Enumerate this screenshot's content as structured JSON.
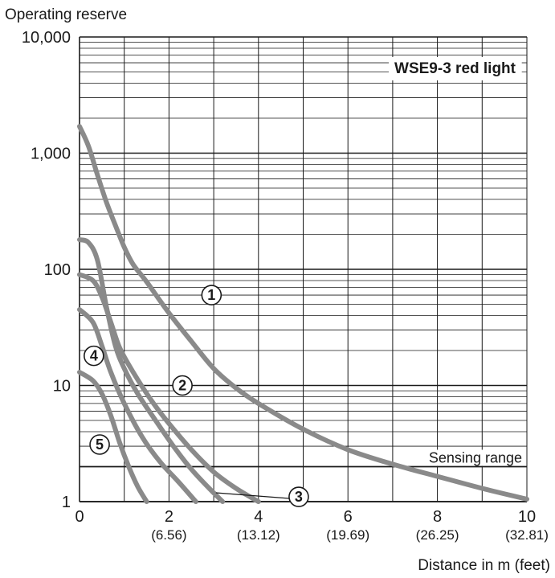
{
  "colors": {
    "curve": "#8a8a8a",
    "grid": "#1a1a1a",
    "background": "#ffffff",
    "text": "#1a1a1a"
  },
  "chart_data": {
    "type": "line",
    "title": "WSE9-3 red light",
    "ylabel": "Operating reserve",
    "xlabel": "Distance in m (feet)",
    "x_ticks": [
      {
        "value": 0,
        "label": "0",
        "sub": ""
      },
      {
        "value": 2,
        "label": "2",
        "sub": "(6.56)"
      },
      {
        "value": 4,
        "label": "4",
        "sub": "(13.12)"
      },
      {
        "value": 6,
        "label": "6",
        "sub": "(19.69)"
      },
      {
        "value": 8,
        "label": "8",
        "sub": "(26.25)"
      },
      {
        "value": 10,
        "label": "10",
        "sub": "(32.81)"
      }
    ],
    "y_ticks": [
      {
        "value": 1,
        "label": "1"
      },
      {
        "value": 10,
        "label": "10"
      },
      {
        "value": 100,
        "label": "100"
      },
      {
        "value": 1000,
        "label": "1,000"
      },
      {
        "value": 10000,
        "label": "10,000"
      }
    ],
    "xlim": [
      0,
      10
    ],
    "ylim": [
      1,
      10000
    ],
    "y_scale": "log",
    "grid": true,
    "threshold": {
      "value": 2,
      "label": "Sensing range"
    },
    "series": [
      {
        "name": "1",
        "points": [
          [
            0,
            1700
          ],
          [
            0.2,
            1150
          ],
          [
            0.4,
            650
          ],
          [
            0.6,
            380
          ],
          [
            0.8,
            240
          ],
          [
            1.0,
            155
          ],
          [
            1.2,
            110
          ],
          [
            1.5,
            78
          ],
          [
            2.0,
            42
          ],
          [
            2.5,
            24
          ],
          [
            3.0,
            14
          ],
          [
            3.5,
            9.5
          ],
          [
            4.0,
            7
          ],
          [
            5.0,
            4.2
          ],
          [
            6.0,
            2.8
          ],
          [
            7.0,
            2.1
          ],
          [
            8.0,
            1.65
          ],
          [
            9.0,
            1.3
          ],
          [
            10.0,
            1.05
          ]
        ]
      },
      {
        "name": "2",
        "points": [
          [
            0,
            90
          ],
          [
            0.3,
            80
          ],
          [
            0.5,
            58
          ],
          [
            0.7,
            35
          ],
          [
            0.9,
            21
          ],
          [
            1.2,
            13
          ],
          [
            1.6,
            7.5
          ],
          [
            2.0,
            4.7
          ],
          [
            2.5,
            2.8
          ],
          [
            3.0,
            1.8
          ],
          [
            3.5,
            1.3
          ],
          [
            4.0,
            1.0
          ]
        ]
      },
      {
        "name": "3",
        "points": [
          [
            0,
            180
          ],
          [
            0.2,
            170
          ],
          [
            0.4,
            120
          ],
          [
            0.6,
            48
          ],
          [
            0.8,
            22
          ],
          [
            1.0,
            14
          ],
          [
            1.3,
            8.5
          ],
          [
            1.7,
            5.0
          ],
          [
            2.1,
            3.0
          ],
          [
            2.5,
            1.9
          ],
          [
            2.9,
            1.3
          ],
          [
            3.2,
            1.0
          ]
        ]
      },
      {
        "name": "4",
        "points": [
          [
            0,
            45
          ],
          [
            0.3,
            35
          ],
          [
            0.5,
            22
          ],
          [
            0.7,
            13
          ],
          [
            1.0,
            7.0
          ],
          [
            1.4,
            3.6
          ],
          [
            1.8,
            2.2
          ],
          [
            2.2,
            1.5
          ],
          [
            2.6,
            1.0
          ]
        ]
      },
      {
        "name": "5",
        "points": [
          [
            0,
            13
          ],
          [
            0.3,
            11
          ],
          [
            0.5,
            8.5
          ],
          [
            0.7,
            5.5
          ],
          [
            0.9,
            3.2
          ],
          [
            1.1,
            2.0
          ],
          [
            1.3,
            1.35
          ],
          [
            1.5,
            1.0
          ]
        ]
      }
    ],
    "markers": [
      {
        "id": "1",
        "x": 2.95,
        "y": 60
      },
      {
        "id": "2",
        "x": 2.3,
        "y": 10
      },
      {
        "id": "3",
        "x": 4.9,
        "y": 1.1
      },
      {
        "id": "4",
        "x": 0.32,
        "y": 18
      },
      {
        "id": "5",
        "x": 0.45,
        "y": 3.1
      }
    ],
    "callout": {
      "series": "3",
      "x": 3.05,
      "y": 1.0
    }
  }
}
